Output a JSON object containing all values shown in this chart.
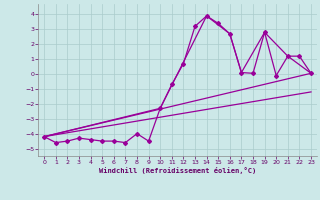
{
  "xlabel": "Windchill (Refroidissement éolien,°C)",
  "background_color": "#cce8e8",
  "line_color": "#990099",
  "grid_color": "#aacccc",
  "xlim": [
    -0.5,
    23.5
  ],
  "ylim": [
    -5.5,
    4.7
  ],
  "yticks": [
    -5,
    -4,
    -3,
    -2,
    -1,
    0,
    1,
    2,
    3,
    4
  ],
  "xticks": [
    0,
    1,
    2,
    3,
    4,
    5,
    6,
    7,
    8,
    9,
    10,
    11,
    12,
    13,
    14,
    15,
    16,
    17,
    18,
    19,
    20,
    21,
    22,
    23
  ],
  "line1_x": [
    0,
    1,
    2,
    3,
    4,
    5,
    6,
    7,
    8,
    9,
    10,
    11,
    12,
    13,
    14,
    15,
    16,
    17,
    18,
    19,
    20,
    21,
    22,
    23
  ],
  "line1_y": [
    -4.2,
    -4.6,
    -4.5,
    -4.3,
    -4.4,
    -4.5,
    -4.5,
    -4.6,
    -4.0,
    -4.5,
    -2.3,
    -0.7,
    0.7,
    3.2,
    3.9,
    3.4,
    2.7,
    0.1,
    0.05,
    2.8,
    -0.1,
    1.2,
    1.2,
    0.05
  ],
  "line2_x": [
    0,
    23
  ],
  "line2_y": [
    -4.2,
    0.05
  ],
  "line3_x": [
    0,
    23
  ],
  "line3_y": [
    -4.2,
    -1.2
  ],
  "line4_x": [
    0,
    10,
    14,
    16,
    17,
    19,
    21,
    23
  ],
  "line4_y": [
    -4.2,
    -2.3,
    3.9,
    2.7,
    0.1,
    2.8,
    1.2,
    0.05
  ]
}
